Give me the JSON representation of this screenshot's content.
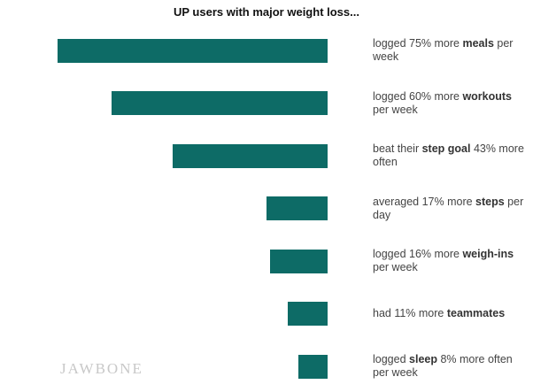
{
  "chart_data": {
    "type": "bar",
    "title": "UP users with major weight loss...",
    "categories": [
      [
        "logged 75% more ",
        "meals",
        " per week"
      ],
      [
        "logged 60% more ",
        "workouts",
        " per week"
      ],
      [
        "beat their ",
        "step goal",
        " 43% more often"
      ],
      [
        "averaged 17% more ",
        "steps",
        " per day"
      ],
      [
        "logged 16% more ",
        "weigh-ins",
        " per week"
      ],
      [
        "had 11% more ",
        "teammates",
        ""
      ],
      [
        "logged ",
        "sleep",
        " 8% more often per week"
      ]
    ],
    "values": [
      75,
      60,
      43,
      17,
      16,
      11,
      8
    ],
    "color": "#0d6b66",
    "watermark": "JAWBONE"
  }
}
